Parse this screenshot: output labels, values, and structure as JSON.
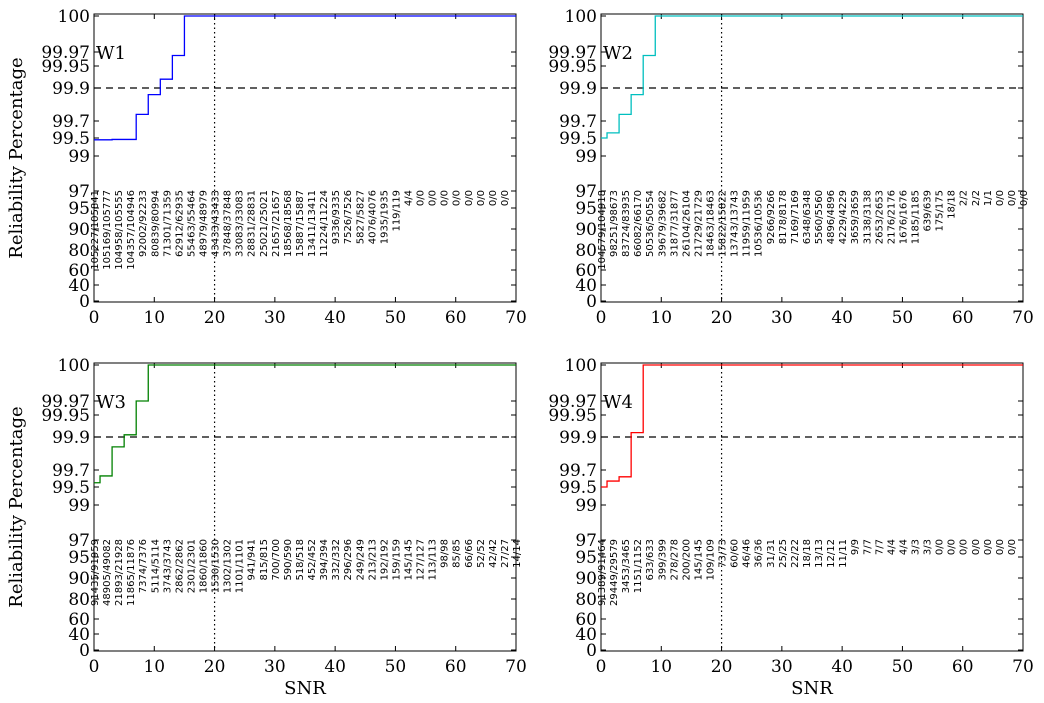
{
  "figure": {
    "ylabel": "Reliability Percentage",
    "xlabel": "SNR"
  },
  "chart_data": [
    {
      "type": "line",
      "panel_label": "W1",
      "color": "#0000ff",
      "xlim": [
        0,
        70
      ],
      "yticks": [
        "0",
        "40",
        "60",
        "80",
        "90",
        "95",
        "97",
        "99",
        "99.5",
        "99.7",
        "99.9",
        "99.95",
        "99.97",
        "100"
      ],
      "xticks": [
        0,
        10,
        20,
        30,
        40,
        50,
        60,
        70
      ],
      "hline": 99.9,
      "vline": 20,
      "steps": [
        [
          0,
          99.45
        ],
        [
          3,
          99.46
        ],
        [
          7,
          99.74
        ],
        [
          9,
          99.86
        ],
        [
          11,
          99.92
        ],
        [
          13,
          99.965
        ],
        [
          15,
          100
        ],
        [
          70,
          100
        ]
      ],
      "count_labels": [
        "105227/105841",
        "105169/105777",
        "104958/105555",
        "104357/104946",
        "92002/92233",
        "80839/80994",
        "71301/71359",
        "62912/62935",
        "55463/55464",
        "48979/48979",
        "43433/43433",
        "37848/37848",
        "33083/33083",
        "28831/28831",
        "25021/25021",
        "21657/21657",
        "18568/18568",
        "15887/15887",
        "13411/13411",
        "11224/11224",
        "9336/9335",
        "7526/7526",
        "5827/5827",
        "4076/4076",
        "1935/1935",
        "119/119",
        "4/4",
        "0/0",
        "0/0",
        "0/0",
        "0/0",
        "0/0",
        "0/0",
        "0/0",
        "0/0"
      ]
    },
    {
      "type": "line",
      "panel_label": "W2",
      "color": "#00bfbf",
      "xlim": [
        0,
        70
      ],
      "yticks": [
        "0",
        "40",
        "60",
        "80",
        "90",
        "95",
        "97",
        "99",
        "99.5",
        "99.7",
        "99.9",
        "99.95",
        "99.97",
        "100"
      ],
      "xticks": [
        0,
        10,
        20,
        30,
        40,
        50,
        60,
        70
      ],
      "hline": 99.9,
      "vline": 20,
      "steps": [
        [
          0,
          99.5
        ],
        [
          1,
          99.56
        ],
        [
          3,
          99.74
        ],
        [
          5,
          99.86
        ],
        [
          7,
          99.965
        ],
        [
          9,
          100
        ],
        [
          70,
          100
        ]
      ],
      "count_labels": [
        "104579/104918",
        "98251/98673",
        "83724/83935",
        "66082/66170",
        "50536/50554",
        "39679/39682",
        "31877/31877",
        "26104/26104",
        "21729/21729",
        "18463/18463",
        "15822/15822",
        "13743/13743",
        "11959/11959",
        "10536/10536",
        "9266/9266",
        "8178/8178",
        "7169/7169",
        "6348/6348",
        "5560/5560",
        "4896/4896",
        "4229/4229",
        "3659/3659",
        "3138/3138",
        "2653/2653",
        "2176/2176",
        "1676/1676",
        "1185/1185",
        "639/639",
        "175/175",
        "18/18",
        "2/2",
        "2/2",
        "1/1",
        "0/0",
        "0/0",
        "0/0"
      ]
    },
    {
      "type": "line",
      "panel_label": "W3",
      "color": "#008000",
      "xlim": [
        0,
        70
      ],
      "yticks": [
        "0",
        "40",
        "60",
        "80",
        "90",
        "95",
        "97",
        "99",
        "99.5",
        "99.7",
        "99.9",
        "99.95",
        "99.97",
        "100"
      ],
      "xticks": [
        0,
        10,
        20,
        30,
        40,
        50,
        60,
        70
      ],
      "hline": 99.9,
      "vline": 20,
      "steps": [
        [
          0,
          99.55
        ],
        [
          1,
          99.63
        ],
        [
          3,
          99.84
        ],
        [
          5,
          99.905
        ],
        [
          7,
          99.97
        ],
        [
          9,
          100
        ],
        [
          70,
          100
        ]
      ],
      "count_labels": [
        "91435/91959",
        "48905/49082",
        "21893/21928",
        "11865/11876",
        "7374/7376",
        "5114/5114",
        "3743/3743",
        "2862/2862",
        "2301/2301",
        "1860/1860",
        "1530/1530",
        "1302/1302",
        "1101/1101",
        "941/941",
        "815/815",
        "700/700",
        "590/590",
        "518/518",
        "452/452",
        "394/394",
        "332/332",
        "296/296",
        "249/249",
        "213/213",
        "192/192",
        "159/159",
        "145/145",
        "127/127",
        "113/113",
        "98/98",
        "85/85",
        "66/66",
        "52/52",
        "42/42",
        "27/27",
        "14/14"
      ]
    },
    {
      "type": "line",
      "panel_label": "W4",
      "color": "#ff0000",
      "xlim": [
        0,
        70
      ],
      "yticks": [
        "0",
        "40",
        "60",
        "80",
        "90",
        "95",
        "97",
        "99",
        "99.5",
        "99.7",
        "99.9",
        "99.95",
        "99.97",
        "100"
      ],
      "xticks": [
        0,
        10,
        20,
        30,
        40,
        50,
        60,
        70
      ],
      "hline": 99.9,
      "vline": 20,
      "steps": [
        [
          0,
          99.5
        ],
        [
          1,
          99.57
        ],
        [
          3,
          99.62
        ],
        [
          5,
          99.91
        ],
        [
          7,
          100
        ],
        [
          70,
          100
        ]
      ],
      "count_labels": [
        "91389/91464",
        "29449/29579",
        "3453/3465",
        "1151/1152",
        "633/633",
        "399/399",
        "278/278",
        "200/200",
        "145/145",
        "109/109",
        "73/73",
        "60/60",
        "46/46",
        "36/36",
        "31/31",
        "25/25",
        "22/22",
        "18/18",
        "13/13",
        "12/12",
        "11/11",
        "9/9",
        "7/7",
        "7/7",
        "4/4",
        "4/4",
        "3/3",
        "3/3",
        "0/0",
        "0/0",
        "0/0",
        "0/0",
        "0/0",
        "0/0",
        "0/0"
      ]
    }
  ]
}
